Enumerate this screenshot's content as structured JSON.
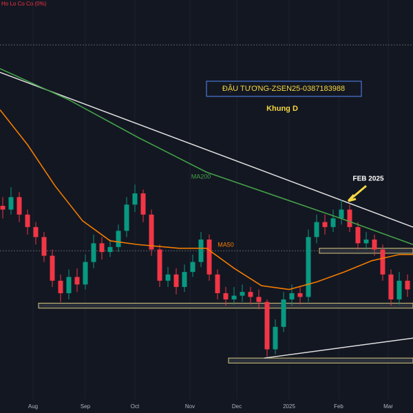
{
  "chart_data": {
    "type": "candlestick",
    "title": "Ho Lo Co Co (0%)",
    "x": [
      1,
      4,
      7,
      10,
      13,
      16,
      19,
      22,
      25,
      28,
      31,
      34,
      37,
      40,
      43,
      46,
      49,
      52,
      55,
      58,
      61,
      64,
      67,
      70,
      73,
      76,
      79,
      82,
      85,
      88,
      91,
      94,
      97,
      100,
      103,
      106,
      109,
      112,
      115,
      118,
      121,
      124,
      127,
      130,
      133,
      136,
      139,
      142,
      145,
      148
    ],
    "open": [
      1065,
      1062,
      1072,
      1058,
      1048,
      1040,
      1025,
      1005,
      995,
      1008,
      1002,
      1020,
      1035,
      1028,
      1032,
      1045,
      1066,
      1075,
      1058,
      1030,
      1005,
      1010,
      1000,
      1012,
      1020,
      1038,
      1010,
      995,
      990,
      993,
      996,
      992,
      988,
      950,
      968,
      990,
      995,
      992,
      1040,
      1052,
      1048,
      1055,
      1062,
      1048,
      1035,
      1038,
      1030,
      1010,
      990,
      1005
    ],
    "high": [
      1072,
      1080,
      1076,
      1062,
      1052,
      1044,
      1030,
      1010,
      1014,
      1015,
      1026,
      1042,
      1040,
      1038,
      1050,
      1072,
      1082,
      1078,
      1062,
      1034,
      1016,
      1015,
      1018,
      1026,
      1044,
      1042,
      1014,
      1000,
      1000,
      1002,
      1000,
      998,
      990,
      974,
      996,
      1002,
      1000,
      1046,
      1058,
      1058,
      1062,
      1070,
      1066,
      1052,
      1044,
      1042,
      1034,
      1014,
      1012,
      1010
    ],
    "low": [
      1055,
      1058,
      1052,
      1042,
      1034,
      1020,
      1000,
      988,
      990,
      996,
      998,
      1015,
      1022,
      1024,
      1028,
      1040,
      1060,
      1052,
      1025,
      1000,
      1000,
      994,
      996,
      1008,
      1016,
      1005,
      990,
      985,
      986,
      988,
      986,
      982,
      944,
      946,
      964,
      985,
      986,
      988,
      1035,
      1042,
      1044,
      1050,
      1044,
      1030,
      1030,
      1025,
      1005,
      985,
      986,
      992
    ],
    "close": [
      1062,
      1072,
      1058,
      1048,
      1040,
      1025,
      1005,
      995,
      1008,
      1002,
      1020,
      1035,
      1028,
      1032,
      1045,
      1066,
      1075,
      1058,
      1030,
      1005,
      1010,
      1000,
      1012,
      1020,
      1038,
      1010,
      995,
      990,
      993,
      996,
      992,
      988,
      950,
      968,
      990,
      995,
      992,
      1040,
      1052,
      1048,
      1055,
      1062,
      1048,
      1035,
      1038,
      1030,
      1010,
      990,
      1005,
      998
    ],
    "up_color": "#089981",
    "down_color": "#f23645",
    "xlim": [
      0,
      150
    ],
    "ylim": [
      910,
      1230
    ],
    "xticks": [
      {
        "value": 12,
        "label": "Aug"
      },
      {
        "value": 31,
        "label": "Sep"
      },
      {
        "value": 49,
        "label": "Oct"
      },
      {
        "value": 69,
        "label": "Nov"
      },
      {
        "value": 86,
        "label": "Dec"
      },
      {
        "value": 105,
        "label": "2025"
      },
      {
        "value": 123,
        "label": "Feb"
      },
      {
        "value": 141,
        "label": "Mar"
      }
    ],
    "grid": true,
    "series": [
      {
        "name": "MA200",
        "color": "#43a047",
        "x": [
          0,
          25,
          50,
          75,
          100,
          125,
          150
        ],
        "values": [
          1175,
          1150,
          1120,
          1092,
          1073,
          1054,
          1034
        ]
      },
      {
        "name": "MA50",
        "color": "#f57c00",
        "x": [
          0,
          10,
          20,
          30,
          40,
          50,
          65,
          75,
          85,
          95,
          105,
          115,
          125,
          135,
          145,
          150
        ],
        "values": [
          1142,
          1114,
          1081,
          1053,
          1037,
          1034,
          1031,
          1031,
          1015,
          1001,
          998,
          1004,
          1012,
          1021,
          1026,
          1026
        ]
      }
    ],
    "trendlines": [
      {
        "color": "#e0e0e0",
        "x": [
          0,
          150
        ],
        "values": [
          1172,
          1048
        ]
      },
      {
        "color": "#e0e0e0",
        "x": [
          96,
          150
        ],
        "values": [
          943,
          959
        ]
      }
    ],
    "zones": [
      {
        "x": [
          14,
          150
        ],
        "values": [
          983,
          987
        ]
      },
      {
        "x": [
          116,
          150
        ],
        "values": [
          1027,
          1031
        ]
      },
      {
        "x": [
          83,
          150
        ],
        "values": [
          939,
          943
        ]
      }
    ],
    "hlines": [
      1194,
      1029
    ],
    "annotations": {
      "box_text": "ĐẬU TƯƠNG-ZSEN25-0387183988",
      "frame": "Khung D",
      "peak_label": "FEB 2025"
    }
  }
}
